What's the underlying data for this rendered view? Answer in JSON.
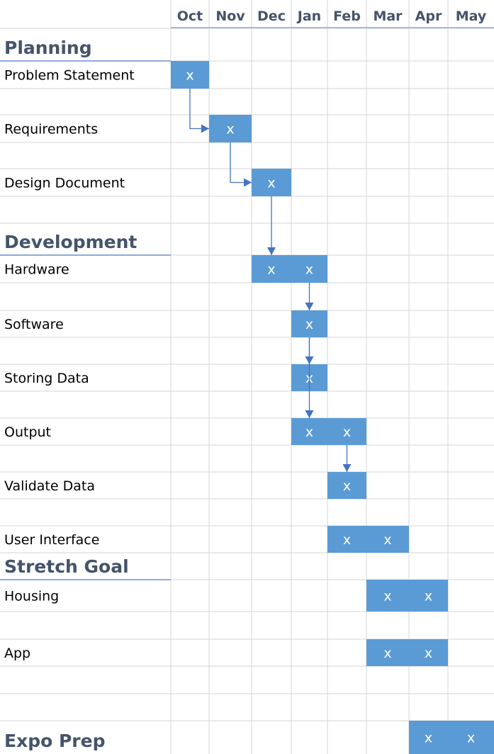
{
  "months": [
    "Oct",
    "Nov",
    "Dec",
    "Jan",
    "Feb",
    "Mar",
    "Apr",
    "May"
  ],
  "mark_symbol": "x",
  "colors": {
    "bar": "#5b9bd5",
    "header_text": "#44546a",
    "connector": "#4472c4",
    "grid": "#d4d4d4"
  },
  "sections": [
    {
      "name": "Planning"
    },
    {
      "name": "Development"
    },
    {
      "name": "Stretch Goal"
    },
    {
      "name": "Expo Prep"
    }
  ],
  "tasks": [
    {
      "id": "problem",
      "label": "Problem Statement",
      "months": [
        "Oct"
      ]
    },
    {
      "id": "requirements",
      "label": "Requirements",
      "months": [
        "Nov"
      ]
    },
    {
      "id": "design",
      "label": "Design Document",
      "months": [
        "Dec"
      ]
    },
    {
      "id": "hardware",
      "label": "Hardware",
      "months": [
        "Dec",
        "Jan"
      ]
    },
    {
      "id": "software",
      "label": "Software",
      "months": [
        "Jan"
      ]
    },
    {
      "id": "storing",
      "label": "Storing Data",
      "months": [
        "Jan"
      ]
    },
    {
      "id": "output",
      "label": "Output",
      "months": [
        "Jan",
        "Feb"
      ]
    },
    {
      "id": "validate",
      "label": "Validate Data",
      "months": [
        "Feb"
      ]
    },
    {
      "id": "ui",
      "label": "User Interface",
      "months": [
        "Feb",
        "Mar"
      ]
    },
    {
      "id": "housing",
      "label": "Housing",
      "months": [
        "Mar",
        "Apr"
      ]
    },
    {
      "id": "app",
      "label": "App",
      "months": [
        "Mar",
        "Apr"
      ]
    },
    {
      "id": "expo",
      "label": "",
      "months": [
        "Apr",
        "May"
      ]
    }
  ],
  "dependencies": [
    {
      "from": "problem",
      "to": "requirements"
    },
    {
      "from": "requirements",
      "to": "design"
    },
    {
      "from": "design",
      "to": "hardware"
    },
    {
      "from": "hardware",
      "to": "software"
    },
    {
      "from": "software",
      "to": "storing"
    },
    {
      "from": "software",
      "to": "output"
    },
    {
      "from": "output",
      "to": "validate"
    }
  ]
}
